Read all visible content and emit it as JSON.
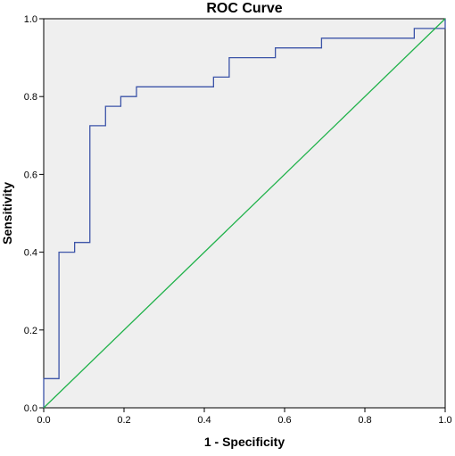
{
  "chart_data": {
    "type": "line",
    "title": "ROC Curve",
    "xlabel": "1 - Specificity",
    "ylabel": "Sensitivity",
    "xlim": [
      0,
      1
    ],
    "ylim": [
      0,
      1
    ],
    "x_ticks": [
      "0.0",
      "0.2",
      "0.4",
      "0.6",
      "0.8",
      "1.0"
    ],
    "y_ticks": [
      "0.0",
      "0.2",
      "0.4",
      "0.6",
      "0.8",
      "1.0"
    ],
    "grid": false,
    "background": "#efefef",
    "series": [
      {
        "color": "#3c54a8",
        "step": true,
        "x": [
          0,
          0,
          0.038,
          0.038,
          0.077,
          0.077,
          0.115,
          0.115,
          0.154,
          0.154,
          0.192,
          0.192,
          0.231,
          0.231,
          0.423,
          0.423,
          0.462,
          0.462,
          0.577,
          0.577,
          0.692,
          0.692,
          0.923,
          0.923,
          1.0,
          1.0
        ],
        "y": [
          0,
          0.075,
          0.075,
          0.4,
          0.4,
          0.425,
          0.425,
          0.725,
          0.725,
          0.775,
          0.775,
          0.8,
          0.8,
          0.825,
          0.825,
          0.85,
          0.85,
          0.9,
          0.9,
          0.925,
          0.925,
          0.95,
          0.95,
          0.975,
          0.975,
          1.0
        ]
      },
      {
        "color": "#21b24b",
        "step": false,
        "x": [
          0,
          1
        ],
        "y": [
          0,
          1
        ]
      }
    ]
  }
}
